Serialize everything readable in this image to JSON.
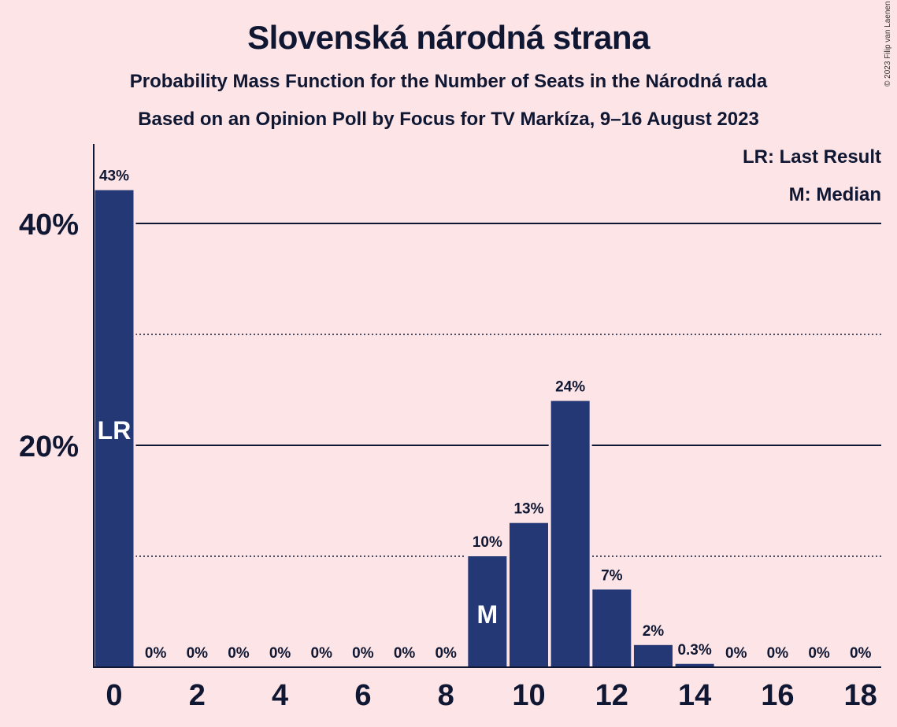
{
  "header": {
    "title": "Slovenská národná strana",
    "subtitle": "Probability Mass Function for the Number of Seats in the Národná rada",
    "source_line": "Based on an Opinion Poll by Focus for TV Markíza, 9–16 August 2023",
    "copyright": "© 2023 Filip van Laenen"
  },
  "legend": {
    "last_result": "LR: Last Result",
    "median": "M: Median"
  },
  "chart_data": {
    "type": "bar",
    "title": "Slovenská národná strana",
    "x": [
      0,
      1,
      2,
      3,
      4,
      5,
      6,
      7,
      8,
      9,
      10,
      11,
      12,
      13,
      14,
      15,
      16,
      17,
      18
    ],
    "values": [
      43,
      0,
      0,
      0,
      0,
      0,
      0,
      0,
      0,
      10,
      13,
      24,
      7,
      2,
      0.3,
      0,
      0,
      0,
      0
    ],
    "data_labels": [
      "43%",
      "0%",
      "0%",
      "0%",
      "0%",
      "0%",
      "0%",
      "0%",
      "0%",
      "10%",
      "13%",
      "24%",
      "7%",
      "2%",
      "0.3%",
      "0%",
      "0%",
      "0%",
      "0%"
    ],
    "xticks": [
      0,
      2,
      4,
      6,
      8,
      10,
      12,
      14,
      16,
      18
    ],
    "ytick_labels": [
      {
        "value": 20,
        "label": "20%"
      },
      {
        "value": 40,
        "label": "40%"
      }
    ],
    "minor_gridlines": [
      10,
      30
    ],
    "ylim": [
      0,
      47
    ],
    "last_result": {
      "x": 0,
      "label": "LR"
    },
    "median": {
      "x": 9,
      "label": "M"
    },
    "bar_color": "#253876",
    "legend_position": "top-right"
  }
}
